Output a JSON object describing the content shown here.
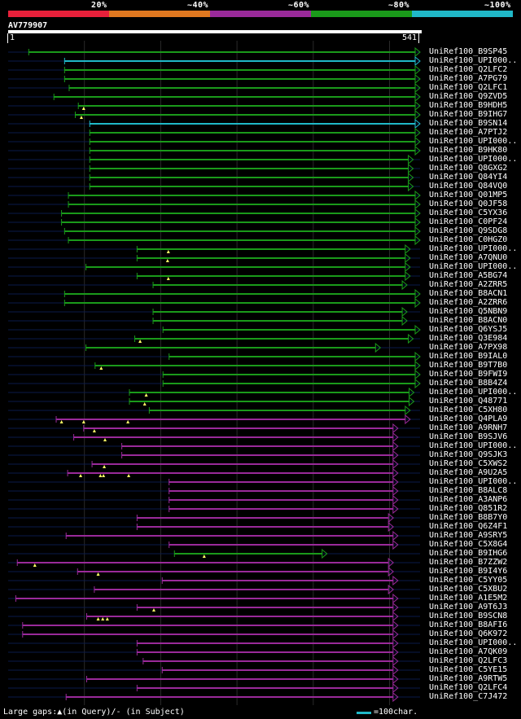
{
  "colors": {
    "background": "#000000",
    "backbone": "#0a1a4a",
    "gridline": "#2a2a2a",
    "identity_bins": [
      "#e8203a",
      "#e07820",
      "#9a2a9a",
      "#1a9a1a",
      "#20b8c8"
    ],
    "gap_marker": "#ffff66",
    "footer_scale_color": "#20b8c8"
  },
  "scale_labels": [
    "20%",
    "~40%",
    "~60%",
    "~80%",
    "~100%"
  ],
  "query": {
    "id": "AV779907",
    "start": "1",
    "end": "541",
    "length": 541
  },
  "hits": [
    {
      "label": "UniRef100_B9SP45",
      "start": 28,
      "end": 541,
      "bin": 3,
      "gaps": []
    },
    {
      "label": "UniRef100_UPI000..",
      "start": 75,
      "end": 541,
      "bin": 4,
      "gaps": []
    },
    {
      "label": "UniRef100_Q2LFC2",
      "start": 75,
      "end": 541,
      "bin": 3,
      "gaps": []
    },
    {
      "label": "UniRef100_A7PG79",
      "start": 75,
      "end": 541,
      "bin": 3,
      "gaps": []
    },
    {
      "label": "UniRef100_Q2LFC1",
      "start": 81,
      "end": 541,
      "bin": 3,
      "gaps": []
    },
    {
      "label": "UniRef100_Q9ZVD5",
      "start": 61,
      "end": 541,
      "bin": 3,
      "gaps": []
    },
    {
      "label": "UniRef100_B9HDH5",
      "start": 93,
      "end": 541,
      "bin": 3,
      "gaps": [
        100
      ]
    },
    {
      "label": "UniRef100_B9IHG7",
      "start": 89,
      "end": 541,
      "bin": 3,
      "gaps": [
        97
      ]
    },
    {
      "label": "UniRef100_B9SN14",
      "start": 108,
      "end": 541,
      "bin": 4,
      "gaps": []
    },
    {
      "label": "UniRef100_A7PTJ2",
      "start": 108,
      "end": 541,
      "bin": 3,
      "gaps": []
    },
    {
      "label": "UniRef100_UPI000..",
      "start": 108,
      "end": 541,
      "bin": 3,
      "gaps": []
    },
    {
      "label": "UniRef100_B9HK80",
      "start": 108,
      "end": 541,
      "bin": 3,
      "gaps": []
    },
    {
      "label": "UniRef100_UPI000..",
      "start": 108,
      "end": 532,
      "bin": 3,
      "gaps": []
    },
    {
      "label": "UniRef100_Q8GXG2",
      "start": 108,
      "end": 532,
      "bin": 3,
      "gaps": []
    },
    {
      "label": "UniRef100_Q84YI4",
      "start": 108,
      "end": 532,
      "bin": 3,
      "gaps": []
    },
    {
      "label": "UniRef100_Q84VQ0",
      "start": 108,
      "end": 532,
      "bin": 3,
      "gaps": []
    },
    {
      "label": "UniRef100_Q01MP5",
      "start": 80,
      "end": 541,
      "bin": 3,
      "gaps": []
    },
    {
      "label": "UniRef100_Q0JF58",
      "start": 80,
      "end": 541,
      "bin": 3,
      "gaps": []
    },
    {
      "label": "UniRef100_C5YX36",
      "start": 71,
      "end": 541,
      "bin": 3,
      "gaps": []
    },
    {
      "label": "UniRef100_C0PF24",
      "start": 71,
      "end": 541,
      "bin": 3,
      "gaps": []
    },
    {
      "label": "UniRef100_Q9SDG8",
      "start": 75,
      "end": 541,
      "bin": 3,
      "gaps": []
    },
    {
      "label": "UniRef100_C0HGZ0",
      "start": 80,
      "end": 541,
      "bin": 3,
      "gaps": []
    },
    {
      "label": "UniRef100_UPI000..",
      "start": 170,
      "end": 528,
      "bin": 3,
      "gaps": [
        211
      ]
    },
    {
      "label": "UniRef100_A7QNU0",
      "start": 170,
      "end": 528,
      "bin": 3,
      "gaps": [
        210
      ]
    },
    {
      "label": "UniRef100_UPI000..",
      "start": 103,
      "end": 528,
      "bin": 3,
      "gaps": []
    },
    {
      "label": "UniRef100_A5BG74",
      "start": 170,
      "end": 528,
      "bin": 3,
      "gaps": [
        211
      ]
    },
    {
      "label": "UniRef100_A2ZRR5",
      "start": 191,
      "end": 524,
      "bin": 3,
      "gaps": []
    },
    {
      "label": "UniRef100_B8ACN1",
      "start": 75,
      "end": 541,
      "bin": 3,
      "gaps": []
    },
    {
      "label": "UniRef100_A2ZRR6",
      "start": 75,
      "end": 541,
      "bin": 3,
      "gaps": []
    },
    {
      "label": "UniRef100_Q5NBN9",
      "start": 191,
      "end": 524,
      "bin": 3,
      "gaps": []
    },
    {
      "label": "UniRef100_B8ACN0",
      "start": 191,
      "end": 524,
      "bin": 3,
      "gaps": []
    },
    {
      "label": "UniRef100_Q6YSJ5",
      "start": 204,
      "end": 541,
      "bin": 3,
      "gaps": []
    },
    {
      "label": "UniRef100_Q3E984",
      "start": 167,
      "end": 532,
      "bin": 3,
      "gaps": [
        174
      ]
    },
    {
      "label": "UniRef100_A7PX98",
      "start": 103,
      "end": 489,
      "bin": 3,
      "gaps": []
    },
    {
      "label": "UniRef100_B9IAL0",
      "start": 212,
      "end": 541,
      "bin": 3,
      "gaps": []
    },
    {
      "label": "UniRef100_B9T7B0",
      "start": 115,
      "end": 541,
      "bin": 3,
      "gaps": [
        123
      ]
    },
    {
      "label": "UniRef100_B9FWI9",
      "start": 204,
      "end": 541,
      "bin": 3,
      "gaps": []
    },
    {
      "label": "UniRef100_B8B4Z4",
      "start": 204,
      "end": 541,
      "bin": 3,
      "gaps": []
    },
    {
      "label": "UniRef100_UPI000..",
      "start": 160,
      "end": 533,
      "bin": 3,
      "gaps": [
        182
      ]
    },
    {
      "label": "UniRef100_Q48771",
      "start": 160,
      "end": 533,
      "bin": 3,
      "gaps": [
        180
      ]
    },
    {
      "label": "UniRef100_C5XH80",
      "start": 186,
      "end": 528,
      "bin": 3,
      "gaps": []
    },
    {
      "label": "UniRef100_Q4PLA9",
      "start": 64,
      "end": 528,
      "bin": 2,
      "gaps": [
        71,
        100,
        158
      ]
    },
    {
      "label": "UniRef100_A9RNH7",
      "start": 100,
      "end": 512,
      "bin": 2,
      "gaps": [
        114
      ]
    },
    {
      "label": "UniRef100_B9SJV6",
      "start": 87,
      "end": 512,
      "bin": 2,
      "gaps": [
        128
      ]
    },
    {
      "label": "UniRef100_UPI000..",
      "start": 150,
      "end": 512,
      "bin": 2,
      "gaps": []
    },
    {
      "label": "UniRef100_Q9SJK3",
      "start": 150,
      "end": 512,
      "bin": 2,
      "gaps": []
    },
    {
      "label": "UniRef100_C5XWS2",
      "start": 111,
      "end": 512,
      "bin": 2,
      "gaps": [
        127
      ]
    },
    {
      "label": "UniRef100_A9U2A5",
      "start": 79,
      "end": 512,
      "bin": 2,
      "gaps": [
        96,
        122,
        126,
        159
      ]
    },
    {
      "label": "UniRef100_UPI000..",
      "start": 212,
      "end": 512,
      "bin": 2,
      "gaps": []
    },
    {
      "label": "UniRef100_B8ALC8",
      "start": 212,
      "end": 512,
      "bin": 2,
      "gaps": []
    },
    {
      "label": "UniRef100_A3ANP6",
      "start": 212,
      "end": 512,
      "bin": 2,
      "gaps": []
    },
    {
      "label": "UniRef100_Q851R2",
      "start": 212,
      "end": 512,
      "bin": 2,
      "gaps": []
    },
    {
      "label": "UniRef100_B8B7Y0",
      "start": 170,
      "end": 506,
      "bin": 2,
      "gaps": []
    },
    {
      "label": "UniRef100_Q6Z4F1",
      "start": 170,
      "end": 506,
      "bin": 2,
      "gaps": []
    },
    {
      "label": "UniRef100_A9SRY5",
      "start": 77,
      "end": 512,
      "bin": 2,
      "gaps": []
    },
    {
      "label": "UniRef100_C5X8G4",
      "start": 212,
      "end": 512,
      "bin": 2,
      "gaps": []
    },
    {
      "label": "UniRef100_B9IHG6",
      "start": 219,
      "end": 419,
      "bin": 3,
      "gaps": [
        258
      ]
    },
    {
      "label": "UniRef100_B7ZZW2",
      "start": 13,
      "end": 506,
      "bin": 2,
      "gaps": [
        36
      ]
    },
    {
      "label": "UniRef100_B9I4Y6",
      "start": 92,
      "end": 506,
      "bin": 2,
      "gaps": [
        119
      ]
    },
    {
      "label": "UniRef100_C5YY05",
      "start": 203,
      "end": 512,
      "bin": 2,
      "gaps": []
    },
    {
      "label": "UniRef100_C5XBU2",
      "start": 114,
      "end": 506,
      "bin": 2,
      "gaps": []
    },
    {
      "label": "UniRef100_A1E5M2",
      "start": 11,
      "end": 512,
      "bin": 2,
      "gaps": []
    },
    {
      "label": "UniRef100_A9T6J3",
      "start": 170,
      "end": 512,
      "bin": 2,
      "gaps": [
        192
      ]
    },
    {
      "label": "UniRef100_B9SCN8",
      "start": 104,
      "end": 512,
      "bin": 2,
      "gaps": [
        119,
        125,
        131
      ]
    },
    {
      "label": "UniRef100_B8AFI6",
      "start": 20,
      "end": 512,
      "bin": 2,
      "gaps": []
    },
    {
      "label": "UniRef100_Q6K972",
      "start": 20,
      "end": 512,
      "bin": 2,
      "gaps": []
    },
    {
      "label": "UniRef100_UPI000..",
      "start": 170,
      "end": 512,
      "bin": 2,
      "gaps": []
    },
    {
      "label": "UniRef100_A7QK09",
      "start": 170,
      "end": 512,
      "bin": 2,
      "gaps": []
    },
    {
      "label": "UniRef100_Q2LFC3",
      "start": 178,
      "end": 512,
      "bin": 2,
      "gaps": []
    },
    {
      "label": "UniRef100_C5YE15",
      "start": 203,
      "end": 512,
      "bin": 2,
      "gaps": []
    },
    {
      "label": "UniRef100_A9RTW5",
      "start": 104,
      "end": 512,
      "bin": 2,
      "gaps": []
    },
    {
      "label": "UniRef100_Q2LFC4",
      "start": 170,
      "end": 512,
      "bin": 2,
      "gaps": []
    },
    {
      "label": "UniRef100_C7J472",
      "start": 77,
      "end": 512,
      "bin": 2,
      "gaps": []
    }
  ],
  "footer": {
    "gaps_note": "Large gaps:▲(in Query)/- (in Subject)",
    "scale_text": "=100char."
  }
}
